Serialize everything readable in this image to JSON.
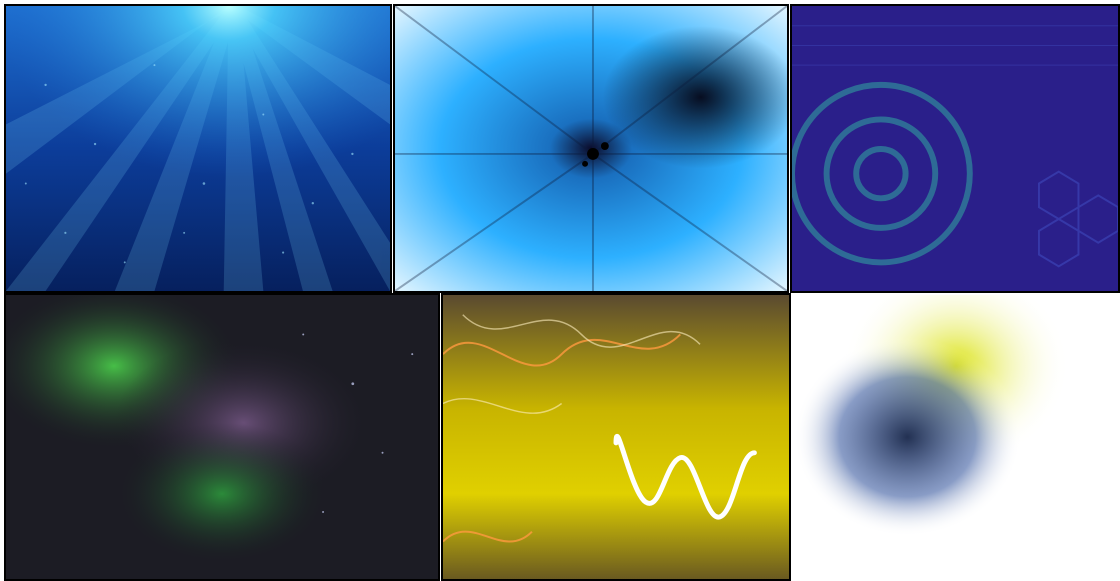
{
  "collage": {
    "tiles": [
      {
        "id": "underwater-light-rays",
        "palette": {
          "bg": "#0a2a7a",
          "accent": "#4fd8ff"
        }
      },
      {
        "id": "blue-zoom-burst",
        "palette": {
          "bg": "#1aa0f0",
          "accent": "#0b0b2a"
        }
      },
      {
        "id": "purple-tech-pattern",
        "palette": {
          "bg": "#2a1f8a",
          "accent": "#2f7f9a"
        }
      },
      {
        "id": "aurora-night-sky",
        "palette": {
          "bg": "#1a1a22",
          "accent": "#3fbf3f"
        }
      },
      {
        "id": "yellow-light-trails",
        "palette": {
          "bg": "#c8b400",
          "accent": "#ffffff"
        }
      },
      {
        "id": "yellow-blue-smear",
        "palette": {
          "bg": "#ffffff",
          "accent": "#d8e000"
        }
      }
    ]
  }
}
